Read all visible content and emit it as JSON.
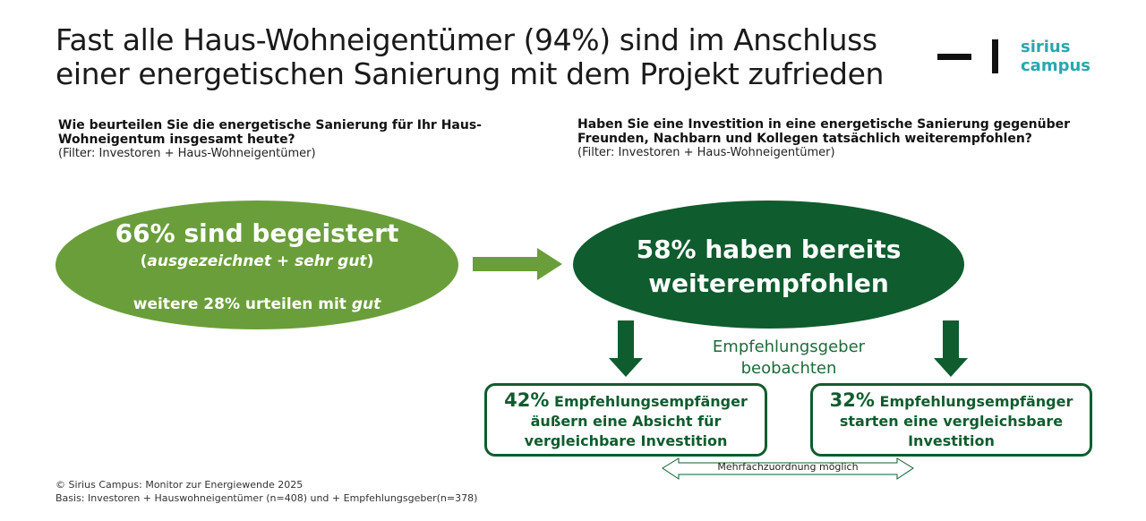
{
  "header": {
    "title_line1": "Fast alle Haus-Wohneigentümer (94%) sind im Anschluss",
    "title_line2": "einer energetischen Sanierung mit dem Projekt zufrieden",
    "logo_line1": "sirius",
    "logo_line2": "campus"
  },
  "left_question": {
    "line1": "Wie beurteilen Sie die energetische Sanierung für Ihr Haus-",
    "line2": "Wohneigentum insgesamt heute?",
    "filter": "(Filter: Investoren + Haus-Wohneigentümer)"
  },
  "right_question": {
    "line1": "Haben Sie eine Investition in eine energetische Sanierung gegenüber",
    "line2": "Freunden, Nachbarn und Kollegen tatsächlich weiterempfohlen?",
    "filter": "(Filter: Investoren + Haus-Wohneigentümer)"
  },
  "left_ellipse": {
    "main": "66% sind begeistert",
    "sub_open": "(",
    "sub_a": "ausgezeichnet",
    "sub_plus": " + ",
    "sub_b": "sehr gut",
    "sub_close": ")",
    "lower_text": "weitere 28% urteilen mit ",
    "lower_emph": "gut"
  },
  "right_ellipse": {
    "line1": "58% haben bereits",
    "line2": "weiterempfohlen"
  },
  "middle_label": {
    "line1": "Empfehlungsgeber",
    "line2": "beobachten"
  },
  "box_left": {
    "pct": "42%",
    "text1": " Empfehlungsempfänger",
    "text2": "äußern eine Absicht für",
    "text3": "vergleichbare Investition"
  },
  "box_right": {
    "pct": "32%",
    "text1": " Empfehlungsempfänger",
    "text2": "starten eine vergleichsbare",
    "text3": "Investition"
  },
  "multi_note": "Mehrfachzuordnung möglich",
  "footer": {
    "line1": "© Sirius Campus: Monitor zur Energiewende 2025",
    "line2": "Basis: Investoren + Hauswohneigentümer (n=408) und + Empfehlungsgeber(n=378)"
  },
  "colors": {
    "light_green": "#6a9e3a",
    "dark_green": "#0f5c2e",
    "logo_teal": "#2aa6ad"
  }
}
